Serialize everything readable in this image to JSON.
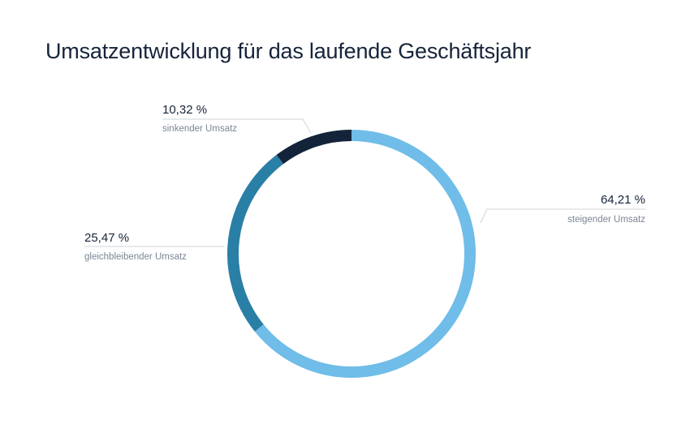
{
  "chart_data": {
    "type": "pie",
    "variant": "donut",
    "title": "Umsatzentwicklung für das laufende Geschäftsjahr",
    "slices": [
      {
        "label": "steigender Umsatz",
        "value": 64.21,
        "value_text": "64,21 %",
        "color": "#6fbde8"
      },
      {
        "label": "gleichbleibender Umsatz",
        "value": 25.47,
        "value_text": "25,47 %",
        "color": "#2a7fa6"
      },
      {
        "label": "sinkender Umsatz",
        "value": 10.32,
        "value_text": "10,32 %",
        "color": "#13243a"
      }
    ],
    "start_angle": "12 o'clock",
    "direction": "clockwise",
    "legend": "none (labels beside slices)"
  }
}
